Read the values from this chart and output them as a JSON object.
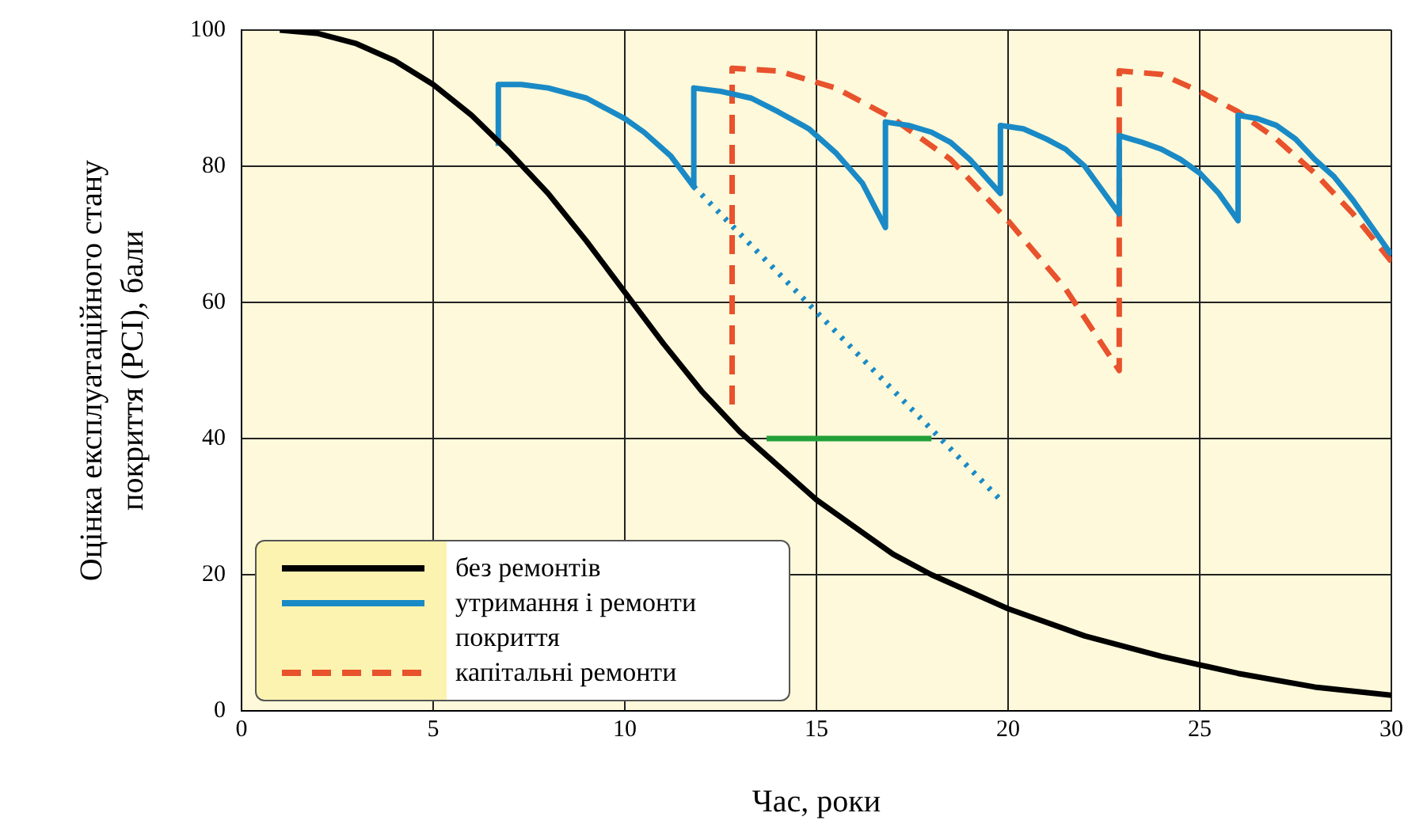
{
  "chart_data": {
    "type": "line",
    "xlabel": "Час, роки",
    "ylabel": "Оцінка експлуатаційного стану покриття (PCI), бали",
    "xlim": [
      0,
      30
    ],
    "xticks": [
      0,
      5,
      10,
      15,
      20,
      25,
      30
    ],
    "ylim": [
      0,
      100
    ],
    "yticks": [
      0,
      20,
      40,
      60,
      80,
      100
    ],
    "grid": true,
    "legend": "bottom left",
    "marker": "none",
    "series": [
      {
        "name": "без ремонтів",
        "color": "#000000",
        "line_style": "solid",
        "x": [
          1,
          2,
          3,
          4,
          5,
          6,
          7,
          8,
          9,
          10,
          11,
          12,
          13,
          14,
          15,
          16,
          17,
          18,
          19,
          20,
          22,
          24,
          26,
          28,
          30
        ],
        "values": [
          100,
          99.5,
          98,
          95.5,
          92,
          87.5,
          82,
          76,
          69,
          61.5,
          54,
          47,
          41,
          36,
          31,
          27,
          23,
          20,
          17.5,
          15,
          11,
          8,
          5.5,
          3.5,
          2.3
        ]
      },
      {
        "name": "утримання і ремонти покриття",
        "color": "#1a8ac6",
        "line_style": "solid",
        "x": [
          6.7,
          6.7,
          7.3,
          8,
          9,
          10,
          10.5,
          11.2,
          11.8,
          11.8,
          12.5,
          13.3,
          14,
          14.8,
          15.5,
          16.2,
          16.8,
          16.8,
          17.4,
          18,
          18.5,
          19,
          19.8,
          19.8,
          20.4,
          21,
          21.5,
          22,
          22.9,
          22.9,
          23.5,
          24,
          24.5,
          25,
          25.5,
          26,
          26,
          26.5,
          27,
          27.5,
          28,
          28.5,
          29,
          29.5,
          30
        ],
        "values": [
          83,
          92,
          92,
          91.5,
          90,
          87,
          85,
          81.5,
          77,
          91.5,
          91,
          90,
          88,
          85.5,
          82,
          77.5,
          71,
          86.5,
          86,
          85,
          83.5,
          81,
          76,
          86,
          85.5,
          84,
          82.5,
          80,
          73,
          84.5,
          83.5,
          82.5,
          81,
          79,
          76,
          72,
          87.5,
          87,
          86,
          84,
          81,
          78.5,
          75,
          71,
          67
        ]
      },
      {
        "color": "#1a8ac6",
        "line_style": "dotted",
        "x": [
          11.8,
          19.8
        ],
        "values": [
          77,
          31
        ]
      },
      {
        "color": "#22a038",
        "line_style": "solid",
        "x": [
          13.7,
          18
        ],
        "values": [
          40,
          40
        ]
      },
      {
        "name": "капітальні ремонти",
        "color": "#e8522c",
        "line_style": "dashed",
        "x": [
          12.8,
          12.8,
          14,
          15.5,
          17,
          18.5,
          20,
          21.5,
          22.9,
          22.9,
          24,
          25,
          26,
          27,
          28,
          29,
          30
        ],
        "values": [
          45,
          94.4,
          94,
          91.5,
          87,
          81,
          72,
          62,
          50,
          94,
          93.5,
          91,
          88,
          84,
          79,
          73,
          66
        ]
      }
    ]
  }
}
